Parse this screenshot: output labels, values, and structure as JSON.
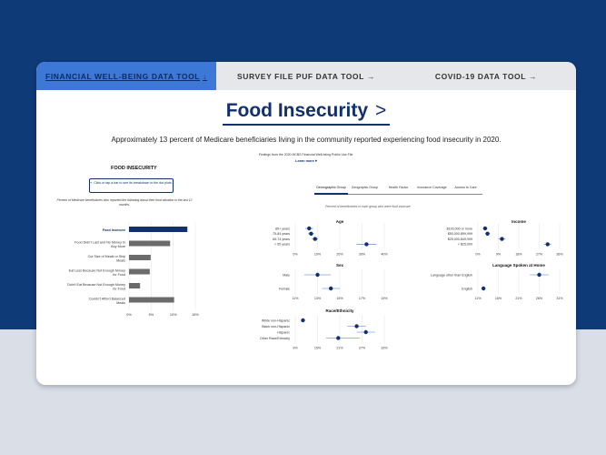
{
  "tabs": [
    {
      "label": "FINANCIAL WELL-BEING DATA TOOL",
      "arrow": "↓",
      "active": true
    },
    {
      "label": "SURVEY FILE PUF DATA TOOL",
      "arrow": "→",
      "active": false
    },
    {
      "label": "COVID-19 DATA TOOL",
      "arrow": "→",
      "active": false
    }
  ],
  "page": {
    "title": "Food Insecurity",
    "title_chevron": ">",
    "summary": "Approximately 13 percent of Medicare beneficiaries living in the community reported experiencing food insecurity in 2020.",
    "findings_note": "Findings from the 2020 MCBS Financial Well-being Public Use File.",
    "learn_more": "Learn more ▾"
  },
  "left_panel": {
    "heading": "FOOD INSECURITY",
    "click_hint": "↖ Click or tap a bar to see its breakdown in the dot plots.",
    "percent_note": "Percent of Medicare beneficiaries who reported the following about their food situation in the last 12 months."
  },
  "subtabs": [
    {
      "label": "Demographic Group",
      "active": true
    },
    {
      "label": "Geographic Group",
      "active": false
    },
    {
      "label": "Health Factor",
      "active": false
    },
    {
      "label": "Insurance Coverage",
      "active": false
    },
    {
      "label": "Access to Care",
      "active": false
    }
  ],
  "each_group_note": "Percent of beneficiaries in each group who were food insecure",
  "colors": {
    "navy": "#12306b",
    "gray_bar": "#6b6b6b",
    "tab_active": "#3d78d6"
  },
  "chart_data": [
    {
      "type": "bar",
      "orientation": "horizontal",
      "categories": [
        "Food Insecure",
        "Food Didn't Last and No Money to Buy More",
        "Cut Size of Meals or Skip Meals",
        "Eat Less Because Not Enough Money for Food",
        "Didn't Eat Because Not Enough Money for Food",
        "Couldn't Afford Balanced Meals"
      ],
      "values": [
        13.2,
        9.3,
        4.9,
        4.7,
        2.5,
        10.2
      ],
      "highlight": "Food Insecure",
      "x_ticks": [
        "0%",
        "5%",
        "10%",
        "15%"
      ],
      "xlim": [
        0,
        15
      ]
    },
    {
      "type": "scatter",
      "title": "Age",
      "categories": [
        "85+ years",
        "75-84 years",
        "65-74 years",
        "< 65 years"
      ],
      "values": [
        7,
        8,
        10,
        36
      ],
      "ci": [
        [
          5,
          9
        ],
        [
          6.5,
          9.5
        ],
        [
          8.5,
          11.5
        ],
        [
          31,
          41
        ]
      ],
      "x_ticks": [
        "0%",
        "10%",
        "20%",
        "30%",
        "40%"
      ],
      "xlim": [
        0,
        45
      ]
    },
    {
      "type": "scatter",
      "title": "Income",
      "categories": [
        "$100,000 or more",
        "$50,000-$99,999",
        "$25,000-$49,999",
        "< $25,000"
      ],
      "values": [
        3,
        4,
        10,
        29
      ],
      "ci": [
        [
          2,
          4
        ],
        [
          3,
          5
        ],
        [
          8.5,
          11.5
        ],
        [
          27.5,
          30.5
        ]
      ],
      "x_ticks": [
        "0%",
        "9%",
        "18%",
        "27%",
        "36%"
      ],
      "xlim": [
        0,
        34
      ]
    },
    {
      "type": "scatter",
      "title": "Sex",
      "categories": [
        "Male",
        "Female"
      ],
      "values": [
        12.5,
        14
      ],
      "ci": [
        [
          11,
          14
        ],
        [
          13,
          15
        ]
      ],
      "x_ticks": [
        "11%",
        "13%",
        "15%",
        "17%",
        "19%"
      ],
      "xlim": [
        10,
        20
      ]
    },
    {
      "type": "scatter",
      "title": "Language Spoken at Home",
      "categories": [
        "Language other than English",
        "English"
      ],
      "values": [
        26.5,
        11.5
      ],
      "ci": [
        [
          24,
          29
        ],
        [
          11,
          12
        ]
      ],
      "x_ticks": [
        "11%",
        "16%",
        "21%",
        "26%",
        "31%"
      ],
      "xlim": [
        10,
        32
      ]
    },
    {
      "type": "scatter",
      "title": "Race/Ethnicity",
      "categories": [
        "White non-Hispanic",
        "Black non-Hispanic",
        "Hispanic",
        "Other Race/Ethnicity"
      ],
      "values": [
        7.5,
        25,
        28,
        19
      ],
      "ci": [
        [
          7,
          8
        ],
        [
          22,
          28
        ],
        [
          25,
          31
        ],
        [
          15,
          26
        ]
      ],
      "x_ticks": [
        "9%",
        "15%",
        "21%",
        "27%",
        "33%"
      ],
      "xlim": [
        5,
        34
      ]
    }
  ]
}
